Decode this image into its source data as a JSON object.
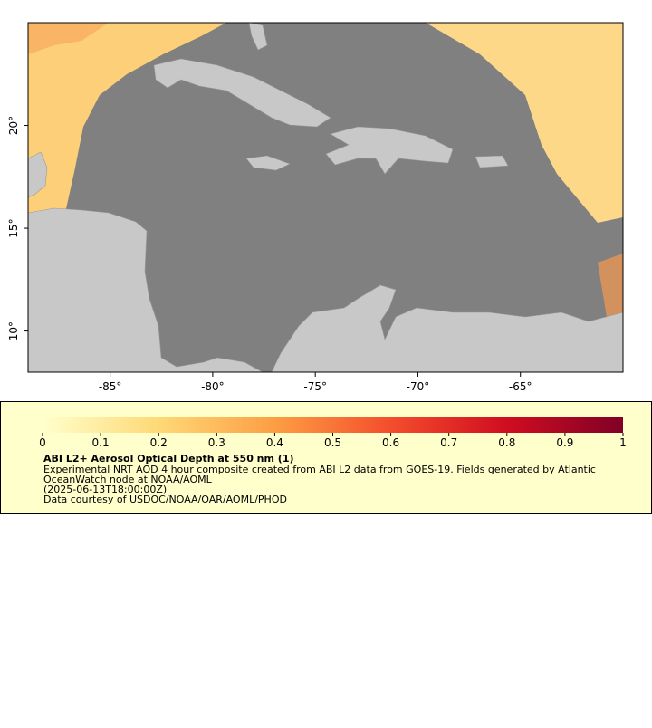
{
  "map": {
    "xlim": [
      -89,
      -60
    ],
    "ylim": [
      8,
      25
    ],
    "xticks": [
      {
        "value": -85,
        "label": "-85°"
      },
      {
        "value": -80,
        "label": "-80°"
      },
      {
        "value": -75,
        "label": "-75°"
      },
      {
        "value": -70,
        "label": "-70°"
      },
      {
        "value": -65,
        "label": "-65°"
      }
    ],
    "yticks": [
      {
        "value": 10,
        "label": "10°"
      },
      {
        "value": 15,
        "label": "15°"
      },
      {
        "value": 20,
        "label": "20°"
      }
    ]
  },
  "colorbar": {
    "lim": [
      0,
      1
    ],
    "ticks": [
      0,
      0.1,
      0.2,
      0.3,
      0.4,
      0.5,
      0.6,
      0.7,
      0.8,
      0.9,
      1
    ]
  },
  "legend": {
    "title": "ABI L2+ Aerosol Optical Depth at 550 nm (1)",
    "lines": [
      "Experimental NRT AOD 4 hour composite created from ABI L2 data from GOES-19. Fields generated by Atlantic",
      "OceanWatch node at NOAA/AOML",
      "(2025-06-13T18:00:00Z)",
      "Data courtesy of USDOC/NOAA/OAR/AOML/PHOD"
    ]
  }
}
